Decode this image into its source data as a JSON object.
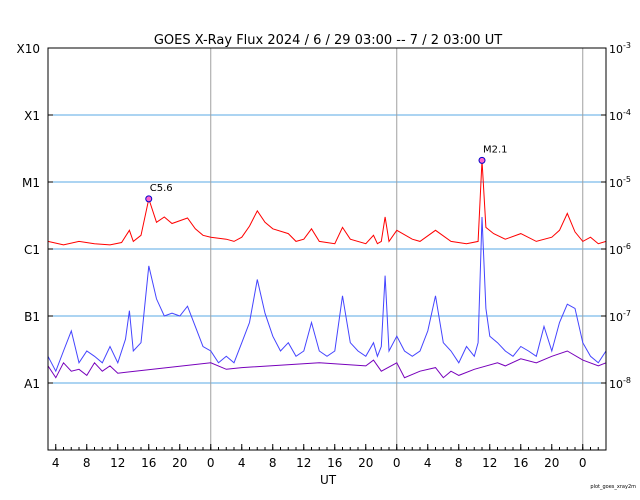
{
  "chart_data": {
    "type": "line",
    "title": "GOES X-Ray Flux   2024 /  6 / 29   03:00 --  7 /  2   03:00   UT",
    "xlabel": "UT",
    "ylabel": "",
    "x_start": "2024-06-29 03:00",
    "x_end": "2024-07-02 03:00",
    "y_scale": "log",
    "ylim": [
      1e-09,
      0.001
    ],
    "left_axis_labels": [
      {
        "label": "X10",
        "value": 0.001
      },
      {
        "label": "X1",
        "value": 0.0001
      },
      {
        "label": "M1",
        "value": 1e-05
      },
      {
        "label": "C1",
        "value": 1e-06
      },
      {
        "label": "B1",
        "value": 1e-07
      },
      {
        "label": "A1",
        "value": 1e-08
      }
    ],
    "right_axis_labels": [
      {
        "base": "10",
        "exp": "-3",
        "value": 0.001
      },
      {
        "base": "10",
        "exp": "-4",
        "value": 0.0001
      },
      {
        "base": "10",
        "exp": "-5",
        "value": 1e-05
      },
      {
        "base": "10",
        "exp": "-6",
        "value": 1e-06
      },
      {
        "base": "10",
        "exp": "-7",
        "value": 1e-07
      },
      {
        "base": "10",
        "exp": "-8",
        "value": 1e-08
      }
    ],
    "grid_levels": [
      0.0001,
      1e-05,
      1e-06,
      1e-07,
      1e-08
    ],
    "x_ticks": [
      {
        "label": "4",
        "t": "2024-06-29 04:00"
      },
      {
        "label": "8",
        "t": "2024-06-29 08:00"
      },
      {
        "label": "12",
        "t": "2024-06-29 12:00"
      },
      {
        "label": "16",
        "t": "2024-06-29 16:00"
      },
      {
        "label": "20",
        "t": "2024-06-29 20:00"
      },
      {
        "label": "0",
        "t": "2024-06-30 00:00"
      },
      {
        "label": "4",
        "t": "2024-06-30 04:00"
      },
      {
        "label": "8",
        "t": "2024-06-30 08:00"
      },
      {
        "label": "12",
        "t": "2024-06-30 12:00"
      },
      {
        "label": "16",
        "t": "2024-06-30 16:00"
      },
      {
        "label": "20",
        "t": "2024-06-30 20:00"
      },
      {
        "label": "0",
        "t": "2024-07-01 00:00"
      },
      {
        "label": "4",
        "t": "2024-07-01 04:00"
      },
      {
        "label": "8",
        "t": "2024-07-01 08:00"
      },
      {
        "label": "12",
        "t": "2024-07-01 12:00"
      },
      {
        "label": "16",
        "t": "2024-07-01 16:00"
      },
      {
        "label": "20",
        "t": "2024-07-01 20:00"
      },
      {
        "label": "0",
        "t": "2024-07-02 00:00"
      }
    ],
    "day_boundaries": [
      "2024-06-30 00:00",
      "2024-07-01 00:00",
      "2024-07-02 00:00"
    ],
    "annotations": [
      {
        "label": "C5.6",
        "t": "2024-06-29 16:00",
        "value": 5.6e-06
      },
      {
        "label": "M2.1",
        "t": "2024-07-01 11:00",
        "value": 2.1e-05
      }
    ],
    "series": [
      {
        "color": "#ff0000",
        "points": [
          [
            "2024-06-29 03:00",
            1.3e-06
          ],
          [
            "2024-06-29 05:00",
            1.15e-06
          ],
          [
            "2024-06-29 07:00",
            1.3e-06
          ],
          [
            "2024-06-29 09:00",
            1.2e-06
          ],
          [
            "2024-06-29 11:00",
            1.15e-06
          ],
          [
            "2024-06-29 12:30",
            1.25e-06
          ],
          [
            "2024-06-29 13:30",
            1.9e-06
          ],
          [
            "2024-06-29 14:00",
            1.3e-06
          ],
          [
            "2024-06-29 15:00",
            1.6e-06
          ],
          [
            "2024-06-29 16:00",
            5.6e-06
          ],
          [
            "2024-06-29 17:00",
            2.5e-06
          ],
          [
            "2024-06-29 18:00",
            3e-06
          ],
          [
            "2024-06-29 19:00",
            2.4e-06
          ],
          [
            "2024-06-29 21:00",
            2.9e-06
          ],
          [
            "2024-06-29 22:00",
            2e-06
          ],
          [
            "2024-06-29 23:00",
            1.6e-06
          ],
          [
            "2024-06-30 00:00",
            1.5e-06
          ],
          [
            "2024-06-30 02:00",
            1.4e-06
          ],
          [
            "2024-06-30 03:00",
            1.3e-06
          ],
          [
            "2024-06-30 04:00",
            1.5e-06
          ],
          [
            "2024-06-30 05:00",
            2.2e-06
          ],
          [
            "2024-06-30 06:00",
            3.7e-06
          ],
          [
            "2024-06-30 07:00",
            2.5e-06
          ],
          [
            "2024-06-30 08:00",
            2e-06
          ],
          [
            "2024-06-30 10:00",
            1.7e-06
          ],
          [
            "2024-06-30 11:00",
            1.3e-06
          ],
          [
            "2024-06-30 12:00",
            1.4e-06
          ],
          [
            "2024-06-30 13:00",
            2e-06
          ],
          [
            "2024-06-30 14:00",
            1.3e-06
          ],
          [
            "2024-06-30 16:00",
            1.2e-06
          ],
          [
            "2024-06-30 17:00",
            2.1e-06
          ],
          [
            "2024-06-30 18:00",
            1.4e-06
          ],
          [
            "2024-06-30 20:00",
            1.2e-06
          ],
          [
            "2024-06-30 21:00",
            1.6e-06
          ],
          [
            "2024-06-30 21:30",
            1.2e-06
          ],
          [
            "2024-06-30 22:00",
            1.3e-06
          ],
          [
            "2024-06-30 22:30",
            3e-06
          ],
          [
            "2024-06-30 23:00",
            1.3e-06
          ],
          [
            "2024-07-01 00:00",
            1.9e-06
          ],
          [
            "2024-07-01 02:00",
            1.4e-06
          ],
          [
            "2024-07-01 03:00",
            1.3e-06
          ],
          [
            "2024-07-01 05:00",
            1.9e-06
          ],
          [
            "2024-07-01 07:00",
            1.3e-06
          ],
          [
            "2024-07-01 09:00",
            1.2e-06
          ],
          [
            "2024-07-01 10:30",
            1.3e-06
          ],
          [
            "2024-07-01 11:00",
            2.1e-05
          ],
          [
            "2024-07-01 11:30",
            2.1e-06
          ],
          [
            "2024-07-01 12:30",
            1.7e-06
          ],
          [
            "2024-07-01 14:00",
            1.4e-06
          ],
          [
            "2024-07-01 16:00",
            1.7e-06
          ],
          [
            "2024-07-01 18:00",
            1.3e-06
          ],
          [
            "2024-07-01 20:00",
            1.5e-06
          ],
          [
            "2024-07-01 21:00",
            1.9e-06
          ],
          [
            "2024-07-01 22:00",
            3.4e-06
          ],
          [
            "2024-07-01 23:00",
            1.8e-06
          ],
          [
            "2024-07-02 00:00",
            1.3e-06
          ],
          [
            "2024-07-02 01:00",
            1.5e-06
          ],
          [
            "2024-07-02 02:00",
            1.2e-06
          ],
          [
            "2024-07-02 03:00",
            1.3e-06
          ]
        ]
      },
      {
        "color": "#4444ff",
        "points": [
          [
            "2024-06-29 03:00",
            2.5e-08
          ],
          [
            "2024-06-29 04:00",
            1.5e-08
          ],
          [
            "2024-06-29 05:00",
            3e-08
          ],
          [
            "2024-06-29 06:00",
            6e-08
          ],
          [
            "2024-06-29 07:00",
            2e-08
          ],
          [
            "2024-06-29 08:00",
            3e-08
          ],
          [
            "2024-06-29 09:00",
            2.5e-08
          ],
          [
            "2024-06-29 10:00",
            2e-08
          ],
          [
            "2024-06-29 11:00",
            3.5e-08
          ],
          [
            "2024-06-29 12:00",
            2e-08
          ],
          [
            "2024-06-29 13:00",
            4.5e-08
          ],
          [
            "2024-06-29 13:30",
            1.2e-07
          ],
          [
            "2024-06-29 14:00",
            3e-08
          ],
          [
            "2024-06-29 15:00",
            4e-08
          ],
          [
            "2024-06-29 16:00",
            5.6e-07
          ],
          [
            "2024-06-29 17:00",
            1.8e-07
          ],
          [
            "2024-06-29 18:00",
            1e-07
          ],
          [
            "2024-06-29 19:00",
            1.1e-07
          ],
          [
            "2024-06-29 20:00",
            1e-07
          ],
          [
            "2024-06-29 21:00",
            1.4e-07
          ],
          [
            "2024-06-29 22:00",
            7e-08
          ],
          [
            "2024-06-29 23:00",
            3.5e-08
          ],
          [
            "2024-06-30 00:00",
            3e-08
          ],
          [
            "2024-06-30 01:00",
            2e-08
          ],
          [
            "2024-06-30 02:00",
            2.5e-08
          ],
          [
            "2024-06-30 03:00",
            2e-08
          ],
          [
            "2024-06-30 04:00",
            4e-08
          ],
          [
            "2024-06-30 05:00",
            8e-08
          ],
          [
            "2024-06-30 06:00",
            3.5e-07
          ],
          [
            "2024-06-30 07:00",
            1.1e-07
          ],
          [
            "2024-06-30 08:00",
            5e-08
          ],
          [
            "2024-06-30 09:00",
            3e-08
          ],
          [
            "2024-06-30 10:00",
            4e-08
          ],
          [
            "2024-06-30 11:00",
            2.5e-08
          ],
          [
            "2024-06-30 12:00",
            3e-08
          ],
          [
            "2024-06-30 13:00",
            8e-08
          ],
          [
            "2024-06-30 14:00",
            3e-08
          ],
          [
            "2024-06-30 15:00",
            2.5e-08
          ],
          [
            "2024-06-30 16:00",
            3e-08
          ],
          [
            "2024-06-30 17:00",
            2e-07
          ],
          [
            "2024-06-30 18:00",
            4e-08
          ],
          [
            "2024-06-30 19:00",
            3e-08
          ],
          [
            "2024-06-30 20:00",
            2.5e-08
          ],
          [
            "2024-06-30 21:00",
            4e-08
          ],
          [
            "2024-06-30 21:30",
            2.5e-08
          ],
          [
            "2024-06-30 22:00",
            3.5e-08
          ],
          [
            "2024-06-30 22:30",
            4e-07
          ],
          [
            "2024-06-30 23:00",
            3e-08
          ],
          [
            "2024-07-01 00:00",
            5e-08
          ],
          [
            "2024-07-01 01:00",
            3e-08
          ],
          [
            "2024-07-01 02:00",
            2.5e-08
          ],
          [
            "2024-07-01 03:00",
            3e-08
          ],
          [
            "2024-07-01 04:00",
            6e-08
          ],
          [
            "2024-07-01 05:00",
            2e-07
          ],
          [
            "2024-07-01 06:00",
            4e-08
          ],
          [
            "2024-07-01 07:00",
            3e-08
          ],
          [
            "2024-07-01 08:00",
            2e-08
          ],
          [
            "2024-07-01 09:00",
            3.5e-08
          ],
          [
            "2024-07-01 10:00",
            2.5e-08
          ],
          [
            "2024-07-01 10:30",
            4e-08
          ],
          [
            "2024-07-01 11:00",
            3e-06
          ],
          [
            "2024-07-01 11:30",
            1.3e-07
          ],
          [
            "2024-07-01 12:00",
            5e-08
          ],
          [
            "2024-07-01 13:00",
            4e-08
          ],
          [
            "2024-07-01 14:00",
            3e-08
          ],
          [
            "2024-07-01 15:00",
            2.5e-08
          ],
          [
            "2024-07-01 16:00",
            3.5e-08
          ],
          [
            "2024-07-01 17:00",
            3e-08
          ],
          [
            "2024-07-01 18:00",
            2.5e-08
          ],
          [
            "2024-07-01 19:00",
            7e-08
          ],
          [
            "2024-07-01 20:00",
            3e-08
          ],
          [
            "2024-07-01 21:00",
            8e-08
          ],
          [
            "2024-07-01 22:00",
            1.5e-07
          ],
          [
            "2024-07-01 23:00",
            1.3e-07
          ],
          [
            "2024-07-02 00:00",
            4e-08
          ],
          [
            "2024-07-02 01:00",
            2.5e-08
          ],
          [
            "2024-07-02 02:00",
            2e-08
          ],
          [
            "2024-07-02 03:00",
            3e-08
          ]
        ]
      },
      {
        "color": "#7700bb",
        "points": [
          [
            "2024-06-29 03:00",
            1.8e-08
          ],
          [
            "2024-06-29 04:00",
            1.2e-08
          ],
          [
            "2024-06-29 05:00",
            2e-08
          ],
          [
            "2024-06-29 06:00",
            1.5e-08
          ],
          [
            "2024-06-29 07:00",
            1.6e-08
          ],
          [
            "2024-06-29 08:00",
            1.3e-08
          ],
          [
            "2024-06-29 09:00",
            2e-08
          ],
          [
            "2024-06-29 10:00",
            1.5e-08
          ],
          [
            "2024-06-29 11:00",
            1.8e-08
          ],
          [
            "2024-06-29 12:00",
            1.4e-08
          ],
          [
            "2024-06-30 00:00",
            2e-08
          ],
          [
            "2024-06-30 02:00",
            1.6e-08
          ],
          [
            "2024-06-30 04:00",
            1.7e-08
          ],
          [
            "2024-06-30 14:00",
            2e-08
          ],
          [
            "2024-06-30 20:00",
            1.8e-08
          ],
          [
            "2024-06-30 21:00",
            2.2e-08
          ],
          [
            "2024-06-30 22:00",
            1.5e-08
          ],
          [
            "2024-07-01 00:00",
            2e-08
          ],
          [
            "2024-07-01 01:00",
            1.2e-08
          ],
          [
            "2024-07-01 03:00",
            1.5e-08
          ],
          [
            "2024-07-01 05:00",
            1.7e-08
          ],
          [
            "2024-07-01 06:00",
            1.2e-08
          ],
          [
            "2024-07-01 07:00",
            1.5e-08
          ],
          [
            "2024-07-01 08:00",
            1.3e-08
          ],
          [
            "2024-07-01 10:00",
            1.6e-08
          ],
          [
            "2024-07-01 13:00",
            2e-08
          ],
          [
            "2024-07-01 14:00",
            1.8e-08
          ],
          [
            "2024-07-01 16:00",
            2.3e-08
          ],
          [
            "2024-07-01 18:00",
            2e-08
          ],
          [
            "2024-07-01 20:00",
            2.5e-08
          ],
          [
            "2024-07-01 22:00",
            3e-08
          ],
          [
            "2024-07-02 00:00",
            2.2e-08
          ],
          [
            "2024-07-02 02:00",
            1.8e-08
          ],
          [
            "2024-07-02 03:00",
            2e-08
          ]
        ]
      }
    ]
  },
  "credit": "plot_goes_xray2m"
}
